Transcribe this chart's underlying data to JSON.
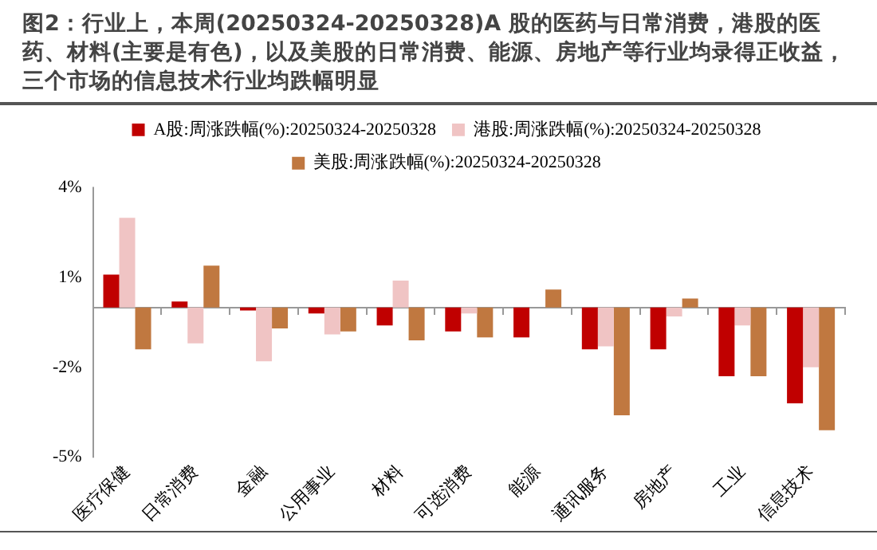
{
  "chart_data": {
    "type": "bar",
    "title": "图2：行业上，本周(20250324-20250328)A 股的医药与日常消费，港股的医药、材料(主要是有色)，以及美股的日常消费、能源、房地产等行业均录得正收益，三个市场的信息技术行业均跌幅明显",
    "categories": [
      "医疗保健",
      "日常消费",
      "金融",
      "公用事业",
      "材料",
      "可选消费",
      "能源",
      "通讯服务",
      "房地产",
      "工业",
      "信息技术"
    ],
    "series": [
      {
        "name": "A股:周涨跌幅(%):20250324-20250328",
        "color": "#c00000",
        "values": [
          1.1,
          0.2,
          -0.1,
          -0.2,
          -0.6,
          -0.8,
          -1.0,
          -1.4,
          -1.4,
          -2.3,
          -3.2
        ]
      },
      {
        "name": "港股:周涨跌幅(%):20250324-20250328",
        "color": "#f0c4c4",
        "values": [
          3.0,
          -1.2,
          -1.8,
          -0.9,
          0.9,
          -0.2,
          0,
          -1.3,
          -0.3,
          -0.6,
          -2.0
        ]
      },
      {
        "name": "美股:周涨跌幅(%):20250324-20250328",
        "color": "#c07840",
        "values": [
          -1.4,
          1.4,
          -0.7,
          -0.8,
          -1.1,
          -1.0,
          0.6,
          -3.6,
          0.3,
          -2.3,
          -4.1
        ]
      }
    ],
    "ylim": [
      -5,
      4
    ],
    "yticks": [
      {
        "value": 4,
        "label": "4%"
      },
      {
        "value": 1,
        "label": "1%"
      },
      {
        "value": -2,
        "label": "-2%"
      },
      {
        "value": -5,
        "label": "-5%"
      }
    ],
    "grid": false,
    "legend": "top"
  }
}
